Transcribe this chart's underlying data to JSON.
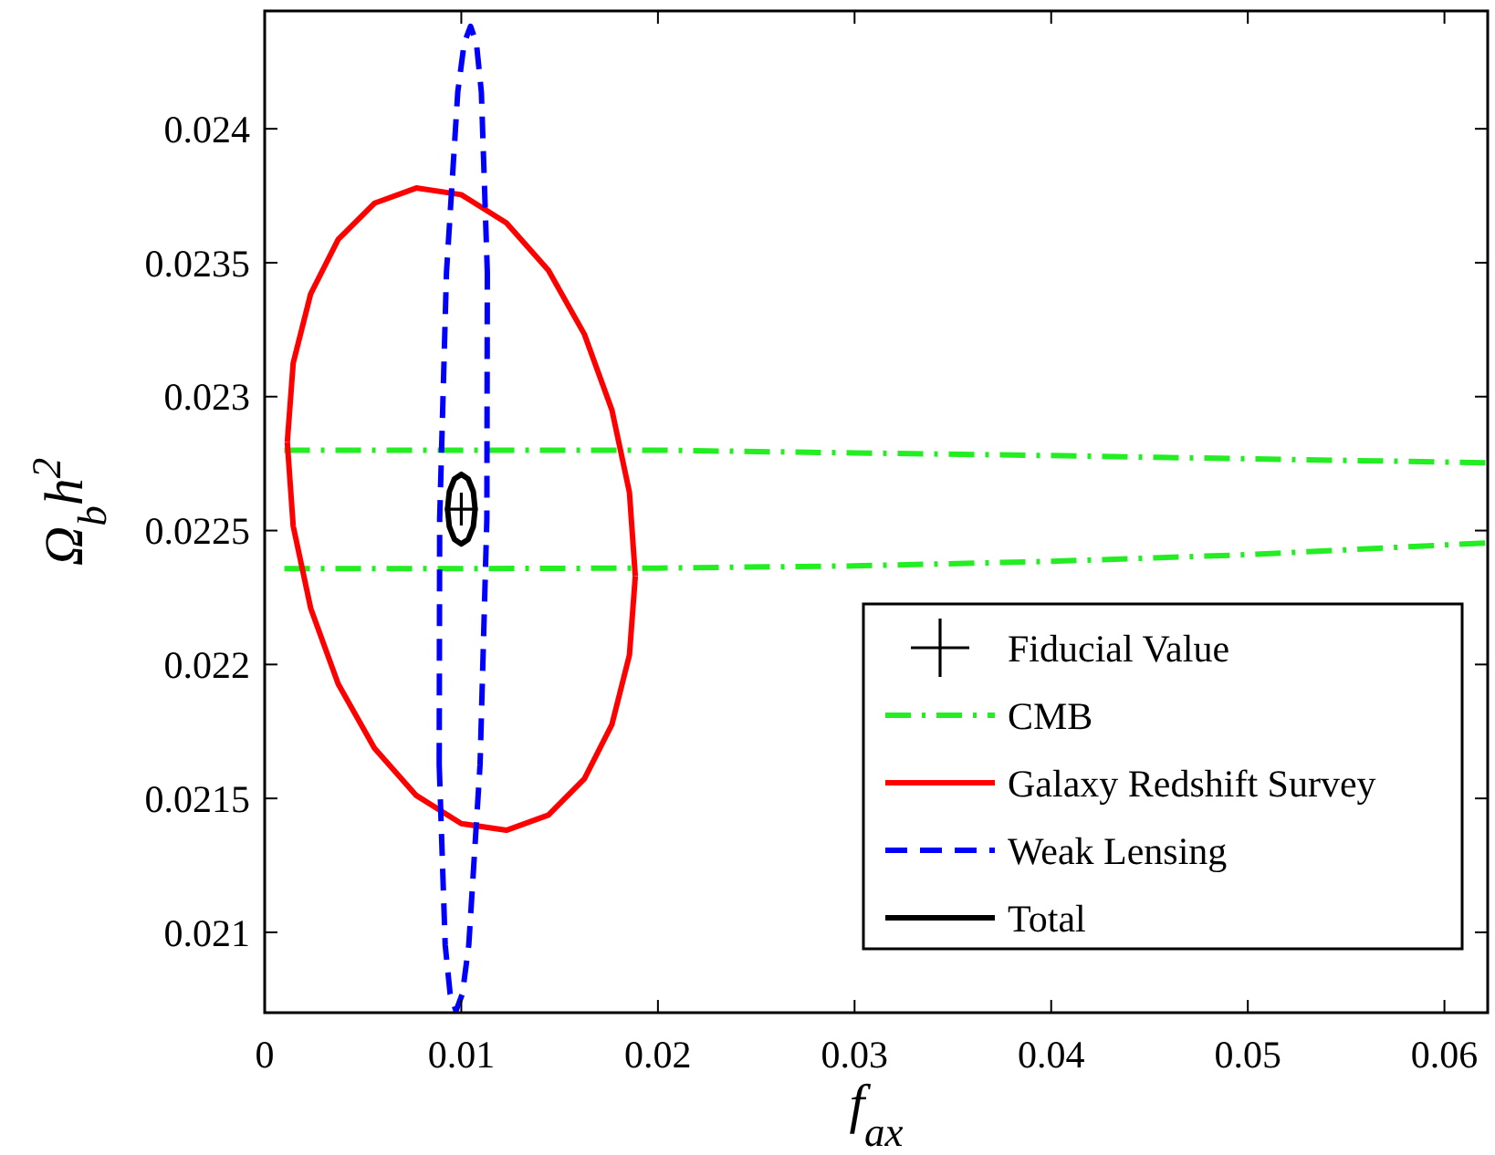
{
  "chart_data": {
    "type": "line",
    "xlabel": "f$_{ax}$",
    "ylabel": "Ω$_{b}$h$^{2}$",
    "xlim": [
      0,
      0.0622
    ],
    "ylim": [
      0.0207,
      0.02444
    ],
    "xticks": [
      0,
      0.01,
      0.02,
      0.03,
      0.04,
      0.05,
      0.06
    ],
    "yticks": [
      0.021,
      0.0215,
      0.022,
      0.0225,
      0.023,
      0.0235,
      0.024
    ],
    "grid": false,
    "legend": "bottom right",
    "series": [
      {
        "name": "Fiducial Value",
        "type": "scatter",
        "marker": "cross",
        "color": "#000000",
        "x": [
          0.01
        ],
        "values": [
          0.02258
        ]
      },
      {
        "name": "CMB",
        "line_style": "dashdot",
        "color": "#22ee22",
        "x": [
          0.001,
          0.02,
          0.03,
          0.04,
          0.05,
          0.0622,
          null,
          0.001,
          0.01,
          0.02,
          0.03,
          0.04,
          0.05,
          0.0622
        ],
        "values": [
          0.0228,
          0.0228,
          0.02279,
          0.02278,
          0.022768,
          0.022753,
          null,
          0.022358,
          0.022358,
          0.02236,
          0.022368,
          0.022385,
          0.02241,
          0.022454
        ]
      },
      {
        "name": "Galaxy Redshift Survey",
        "line_style": "solid",
        "color": "#ff0000",
        "x": [
          0.00115,
          0.00145,
          0.00234,
          0.00374,
          0.00558,
          0.00771,
          0.01,
          0.01229,
          0.01443,
          0.01626,
          0.01766,
          0.01855,
          0.01885,
          null,
          0.00115,
          0.00145,
          0.00234,
          0.00374,
          0.00558,
          0.00771,
          0.01,
          0.01229,
          0.01443,
          0.01626,
          0.01766,
          0.01855,
          0.01885
        ],
        "values": [
          0.02283,
          0.023125,
          0.023384,
          0.023587,
          0.023722,
          0.023779,
          0.023754,
          0.023649,
          0.023472,
          0.023233,
          0.02295,
          0.022643,
          0.02233,
          null,
          0.02283,
          0.022517,
          0.02221,
          0.021927,
          0.021688,
          0.021511,
          0.021406,
          0.021381,
          0.021438,
          0.021573,
          0.021776,
          0.022035,
          0.02233
        ]
      },
      {
        "name": "Weak Lensing",
        "line_style": "dashed",
        "color": "#0000ff",
        "x": [
          0.008876,
          0.0089,
          0.009246,
          0.00982,
          0.010146,
          0.01047,
          0.010768,
          0.01102,
          0.011324,
          null,
          0.008876,
          0.00918,
          0.009432,
          0.00973,
          0.010054,
          0.01038,
          0.010954,
          0.0113,
          0.011324
        ],
        "values": [
          0.021626,
          0.022545,
          0.023464,
          0.024137,
          0.02432,
          0.024383,
          0.02432,
          0.024137,
          0.023464,
          null,
          0.021626,
          0.020953,
          0.02077,
          0.020707,
          0.02077,
          0.020953,
          0.021626,
          0.022545,
          0.023464
        ]
      },
      {
        "name": "Total",
        "line_style": "solid",
        "color": "#000000",
        "x": [
          0.0093,
          0.00939,
          0.00965,
          0.01,
          0.01035,
          0.01061,
          0.0107,
          null,
          0.0093,
          0.00939,
          0.00965,
          0.01,
          0.01035,
          0.01061,
          0.0107
        ],
        "values": [
          0.02258,
          0.022645,
          0.022693,
          0.02271,
          0.022693,
          0.022645,
          0.02258,
          null,
          0.02258,
          0.022515,
          0.022467,
          0.02245,
          0.022467,
          0.022515,
          0.02258
        ]
      }
    ]
  }
}
